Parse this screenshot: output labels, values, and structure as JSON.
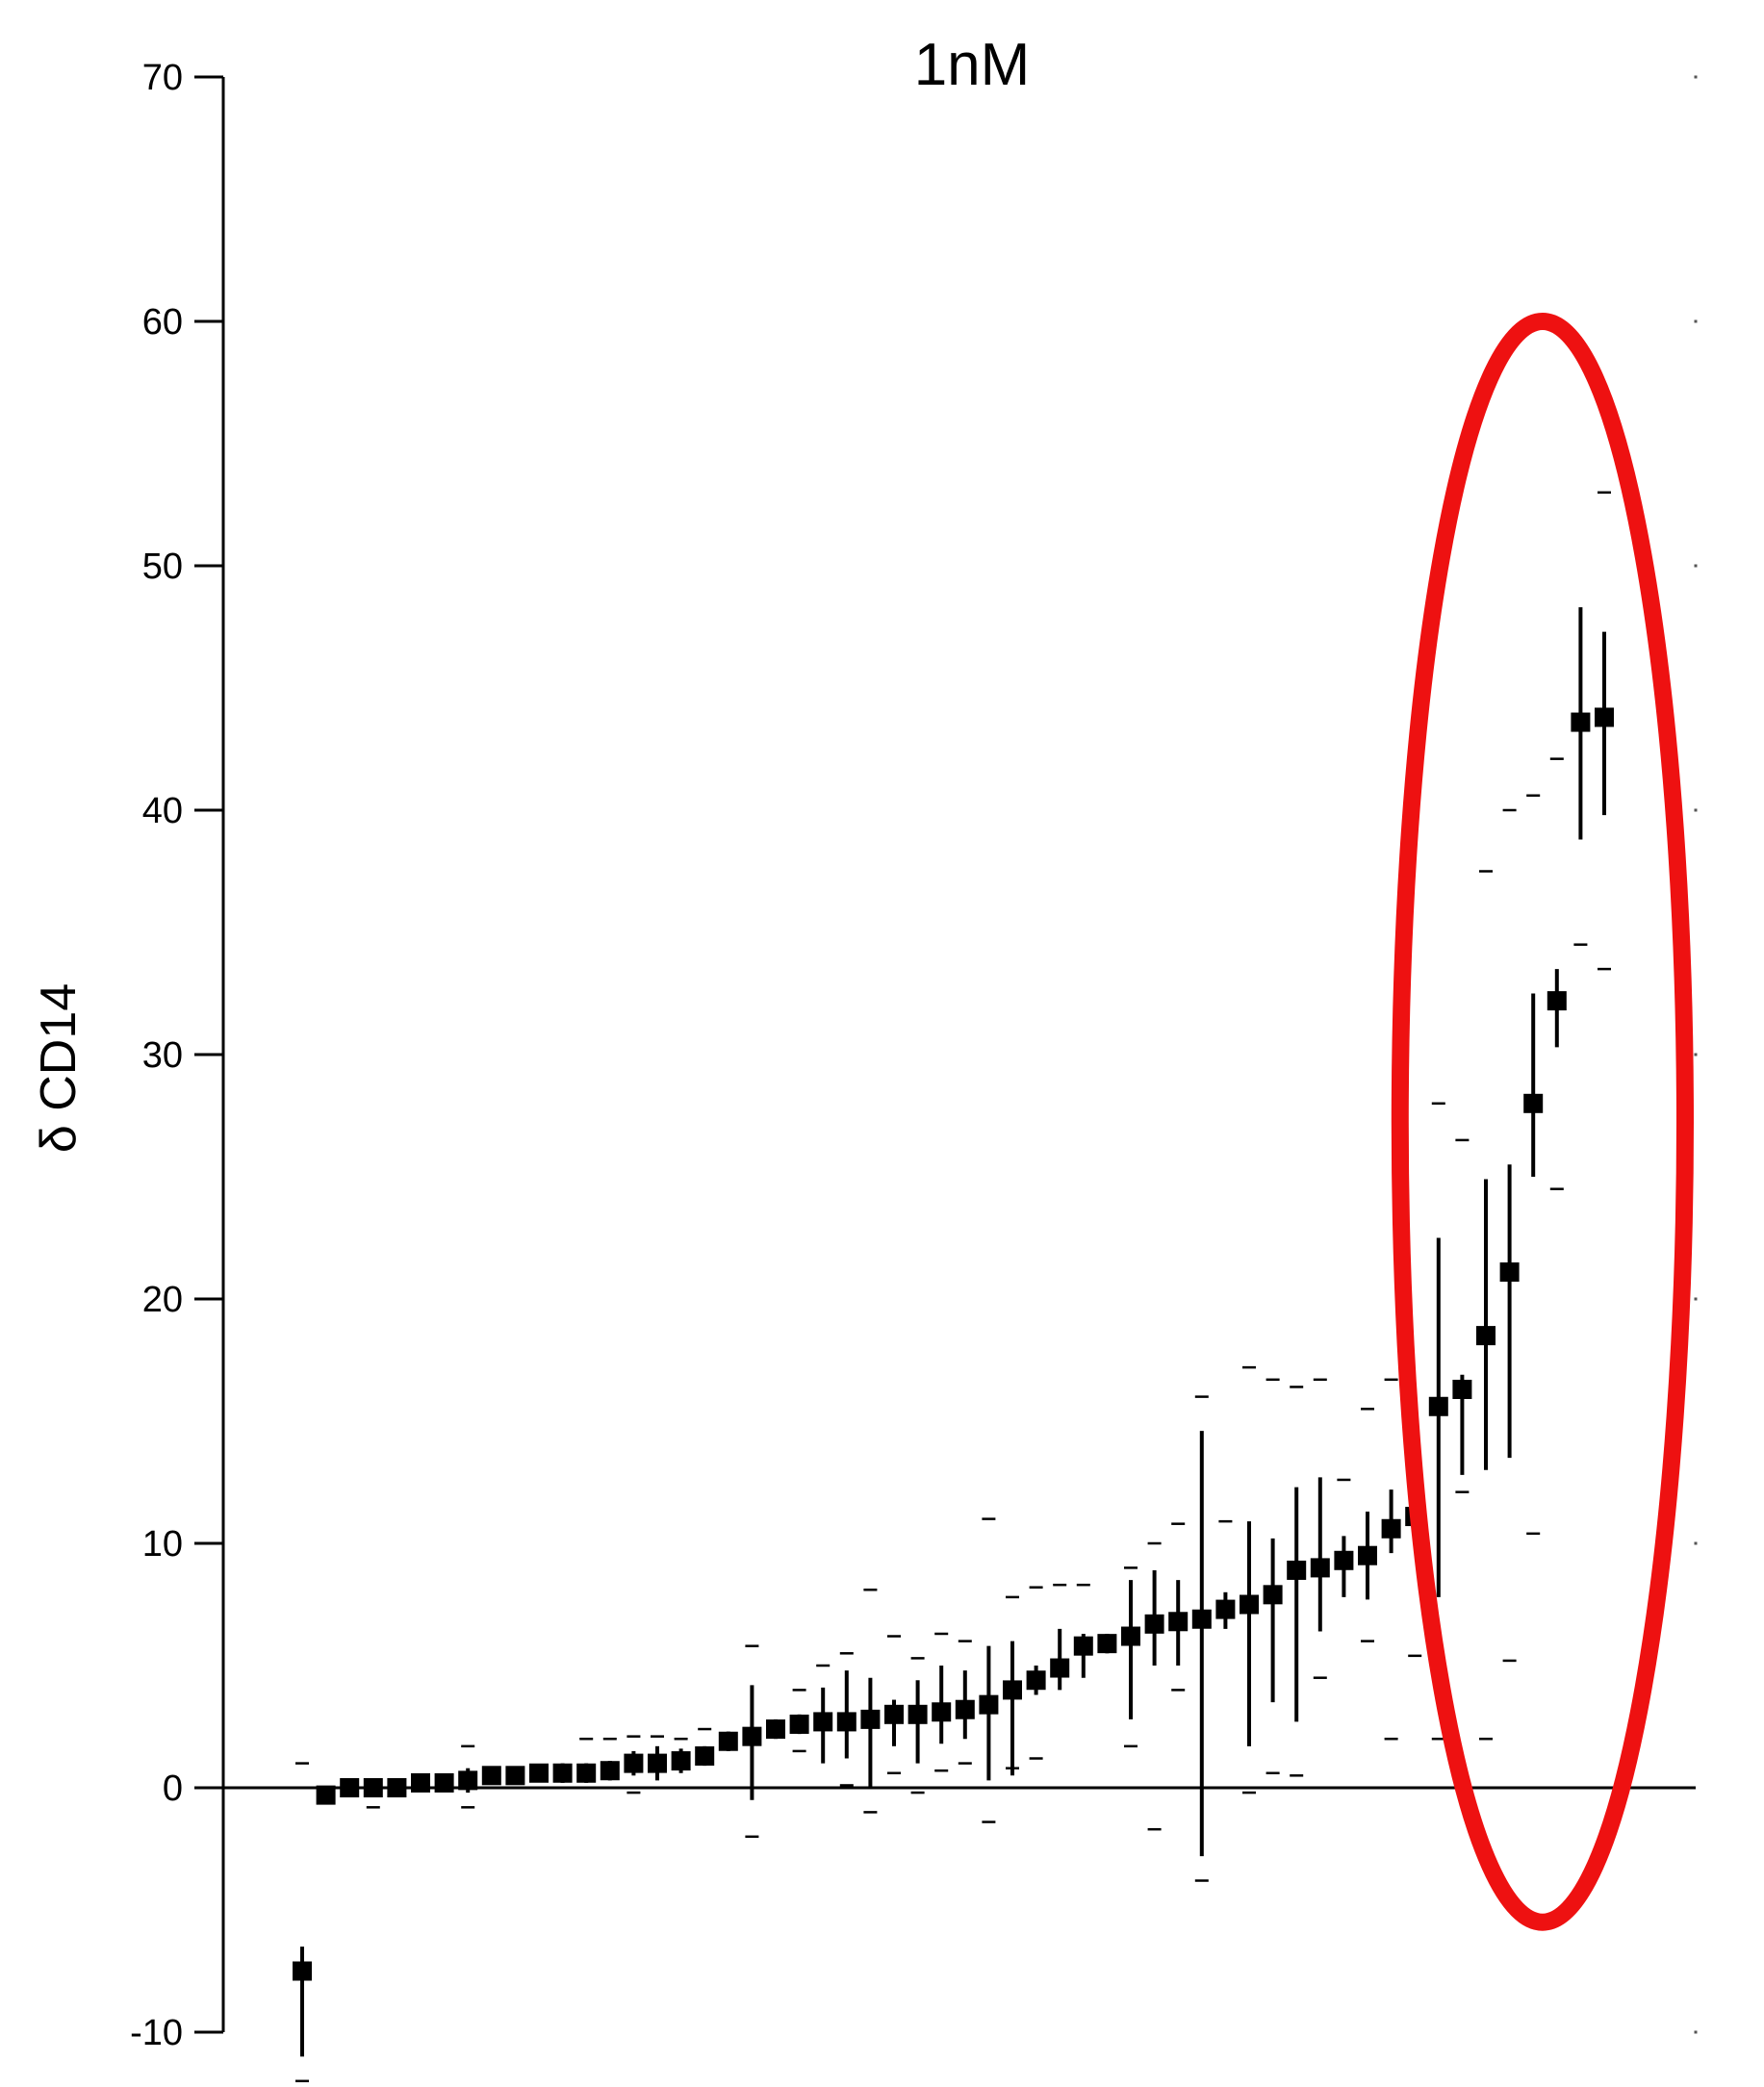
{
  "chart_data": {
    "type": "scatter",
    "title": "1nM",
    "xlabel": "",
    "ylabel": "δ CD14",
    "ylim": [
      -10,
      70
    ],
    "yticks": [
      -10,
      0,
      10,
      20,
      30,
      40,
      50,
      60,
      70
    ],
    "grid": false,
    "zero_line": true,
    "highlight": {
      "shape": "ellipse",
      "color": "#ee1111",
      "covers_points_from": 49,
      "covers_points_to": 56
    },
    "colors": {
      "points": "#000000",
      "highlight": "#ee1111"
    },
    "series": [
      {
        "points": [
          {
            "x": 1,
            "y": -7.5,
            "lo": -11.0,
            "hi": -6.5,
            "q_lo": -12,
            "q_hi": 1.0
          },
          {
            "x": 2,
            "y": -0.3,
            "lo": -0.5,
            "hi": 0.0
          },
          {
            "x": 3,
            "y": 0.0,
            "lo": -0.2,
            "hi": 0.2
          },
          {
            "x": 4,
            "y": 0.0,
            "lo": -0.2,
            "hi": 0.2,
            "q_lo": -0.8
          },
          {
            "x": 5,
            "y": 0.0,
            "lo": -0.2,
            "hi": 0.2
          },
          {
            "x": 6,
            "y": 0.2,
            "lo": 0.0,
            "hi": 0.4
          },
          {
            "x": 7,
            "y": 0.2,
            "lo": 0.0,
            "hi": 0.4
          },
          {
            "x": 8,
            "y": 0.3,
            "lo": -0.2,
            "hi": 0.8,
            "q_lo": -0.8,
            "q_hi": 1.7
          },
          {
            "x": 9,
            "y": 0.5,
            "lo": 0.2,
            "hi": 0.8
          },
          {
            "x": 10,
            "y": 0.5,
            "lo": 0.2,
            "hi": 0.8
          },
          {
            "x": 11,
            "y": 0.6,
            "lo": 0.3,
            "hi": 0.9
          },
          {
            "x": 12,
            "y": 0.6,
            "lo": 0.2,
            "hi": 1.0
          },
          {
            "x": 13,
            "y": 0.6,
            "lo": 0.2,
            "hi": 1.0,
            "q_hi": 2.0
          },
          {
            "x": 14,
            "y": 0.7,
            "lo": 0.3,
            "hi": 1.1,
            "q_hi": 2.0
          },
          {
            "x": 15,
            "y": 1.0,
            "lo": 0.5,
            "hi": 1.5,
            "q_lo": -0.2,
            "q_hi": 2.1
          },
          {
            "x": 16,
            "y": 1.0,
            "lo": 0.3,
            "hi": 1.7,
            "q_hi": 2.1
          },
          {
            "x": 17,
            "y": 1.1,
            "lo": 0.6,
            "hi": 1.6,
            "q_hi": 2.0
          },
          {
            "x": 18,
            "y": 1.3,
            "lo": 0.9,
            "hi": 1.7,
            "q_hi": 2.4
          },
          {
            "x": 19,
            "y": 1.9,
            "lo": 1.5,
            "hi": 2.3
          },
          {
            "x": 20,
            "y": 2.1,
            "lo": -0.5,
            "hi": 4.2,
            "q_lo": -2.0,
            "q_hi": 5.8
          },
          {
            "x": 21,
            "y": 2.4,
            "lo": 2.0,
            "hi": 2.8
          },
          {
            "x": 22,
            "y": 2.6,
            "lo": 2.2,
            "hi": 3.0,
            "q_lo": 1.5,
            "q_hi": 4.0
          },
          {
            "x": 23,
            "y": 2.7,
            "lo": 1.0,
            "hi": 4.1,
            "q_hi": 5.0
          },
          {
            "x": 24,
            "y": 2.7,
            "lo": 1.2,
            "hi": 4.8,
            "q_lo": 0.1,
            "q_hi": 5.5
          },
          {
            "x": 25,
            "y": 2.8,
            "lo": 0.0,
            "hi": 4.5,
            "q_lo": -1.0,
            "q_hi": 8.1
          },
          {
            "x": 26,
            "y": 3.0,
            "lo": 1.7,
            "hi": 3.6,
            "q_lo": 0.6,
            "q_hi": 6.2
          },
          {
            "x": 27,
            "y": 3.0,
            "lo": 1.0,
            "hi": 4.4,
            "q_lo": -0.2,
            "q_hi": 5.3
          },
          {
            "x": 28,
            "y": 3.1,
            "lo": 1.8,
            "hi": 5.0,
            "q_lo": 0.7,
            "q_hi": 6.3
          },
          {
            "x": 29,
            "y": 3.2,
            "lo": 2.0,
            "hi": 4.8,
            "q_lo": 1.0,
            "q_hi": 6.0
          },
          {
            "x": 30,
            "y": 3.4,
            "lo": 0.3,
            "hi": 5.8,
            "q_lo": -1.4,
            "q_hi": 11.0
          },
          {
            "x": 31,
            "y": 4.0,
            "lo": 0.5,
            "hi": 6.0,
            "q_lo": 0.8,
            "q_hi": 7.8
          },
          {
            "x": 32,
            "y": 4.4,
            "lo": 3.8,
            "hi": 5.0,
            "q_lo": 1.2,
            "q_hi": 8.2
          },
          {
            "x": 33,
            "y": 4.9,
            "lo": 4.0,
            "hi": 6.5,
            "q_hi": 8.3
          },
          {
            "x": 34,
            "y": 5.8,
            "lo": 4.5,
            "hi": 6.3,
            "q_hi": 8.3
          },
          {
            "x": 35,
            "y": 5.9,
            "lo": 5.5,
            "hi": 6.3
          },
          {
            "x": 36,
            "y": 6.2,
            "lo": 2.8,
            "hi": 8.5,
            "q_lo": 1.7,
            "q_hi": 9.0
          },
          {
            "x": 37,
            "y": 6.7,
            "lo": 5.0,
            "hi": 8.9,
            "q_lo": -1.7,
            "q_hi": 10.0
          },
          {
            "x": 38,
            "y": 6.8,
            "lo": 5.0,
            "hi": 8.5,
            "q_lo": 4.0,
            "q_hi": 10.8
          },
          {
            "x": 39,
            "y": 6.9,
            "lo": -2.8,
            "hi": 14.6,
            "q_lo": -3.8,
            "q_hi": 16.0
          },
          {
            "x": 40,
            "y": 7.3,
            "lo": 6.5,
            "hi": 8.0,
            "q_hi": 10.9
          },
          {
            "x": 41,
            "y": 7.5,
            "lo": 1.7,
            "hi": 10.9,
            "q_lo": -0.2,
            "q_hi": 17.2
          },
          {
            "x": 42,
            "y": 7.9,
            "lo": 3.5,
            "hi": 10.2,
            "q_lo": 0.6,
            "q_hi": 16.7
          },
          {
            "x": 43,
            "y": 8.9,
            "lo": 2.7,
            "hi": 12.3,
            "q_lo": 0.5,
            "q_hi": 16.4
          },
          {
            "x": 44,
            "y": 9.0,
            "lo": 6.4,
            "hi": 12.7,
            "q_lo": 4.5,
            "q_hi": 16.7
          },
          {
            "x": 45,
            "y": 9.3,
            "lo": 7.8,
            "hi": 10.3,
            "q_hi": 12.6
          },
          {
            "x": 46,
            "y": 9.5,
            "lo": 7.7,
            "hi": 11.3,
            "q_lo": 6.0,
            "q_hi": 15.5
          },
          {
            "x": 47,
            "y": 10.6,
            "lo": 9.6,
            "hi": 12.2,
            "q_lo": 2.0,
            "q_hi": 16.7
          },
          {
            "x": 48,
            "y": 11.1,
            "lo": 10.3,
            "hi": 14.4,
            "q_lo": 5.4
          },
          {
            "x": 49,
            "y": 15.6,
            "lo": 7.8,
            "hi": 22.5,
            "q_lo": 2.0,
            "q_hi": 28.0
          },
          {
            "x": 50,
            "y": 16.3,
            "lo": 12.8,
            "hi": 16.9,
            "q_lo": 12.1,
            "q_hi": 26.5
          },
          {
            "x": 51,
            "y": 18.5,
            "lo": 13.0,
            "hi": 24.9,
            "q_lo": 2.0,
            "q_hi": 37.5
          },
          {
            "x": 52,
            "y": 21.1,
            "lo": 13.5,
            "hi": 25.5,
            "q_lo": 5.2,
            "q_hi": 40.0
          },
          {
            "x": 53,
            "y": 28.0,
            "lo": 25.0,
            "hi": 32.5,
            "q_lo": 10.4,
            "q_hi": 40.6
          },
          {
            "x": 54,
            "y": 32.2,
            "lo": 30.3,
            "hi": 33.5,
            "q_lo": 24.5,
            "q_hi": 42.1
          },
          {
            "x": 55,
            "y": 43.6,
            "lo": 38.8,
            "hi": 48.3,
            "q_lo": 34.5
          },
          {
            "x": 56,
            "y": 43.8,
            "lo": 39.8,
            "hi": 47.3,
            "q_lo": 33.5,
            "q_hi": 53.0
          }
        ]
      }
    ]
  }
}
